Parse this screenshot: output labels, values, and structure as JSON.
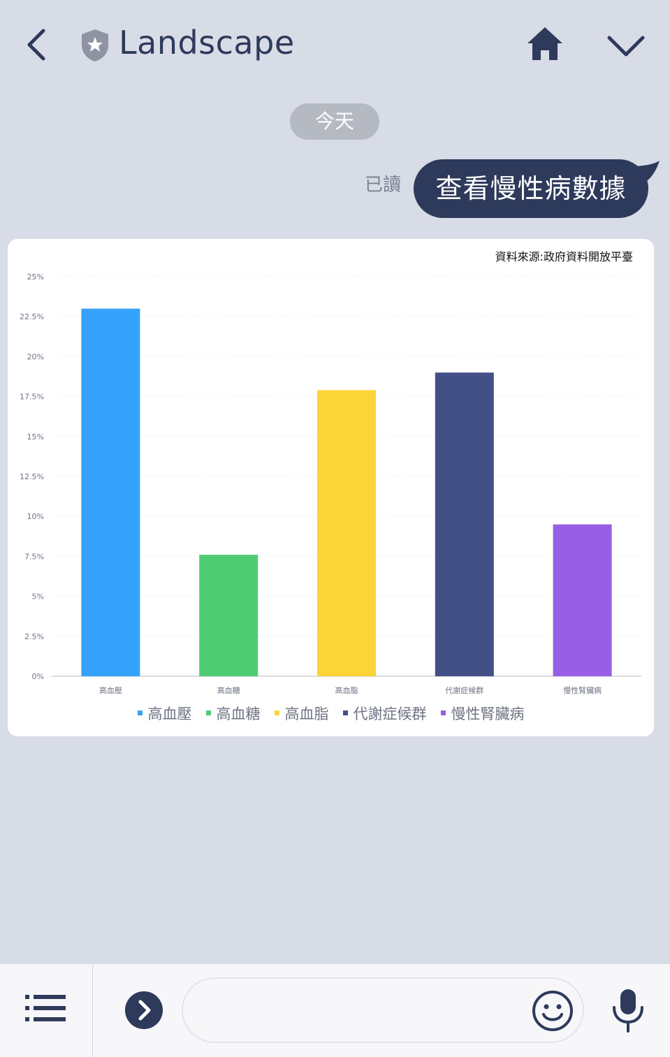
{
  "header": {
    "title": "Landscape",
    "icons": [
      "back-icon",
      "shield-star-icon",
      "home-icon",
      "chevron-down-icon"
    ]
  },
  "chat": {
    "date_label": "今天",
    "read_label": "已讀",
    "message": "查看慢性病數據"
  },
  "card": {
    "source_text": "資料來源:政府資料開放平臺"
  },
  "chart_data": {
    "type": "bar",
    "categories": [
      "高血壓",
      "高血糖",
      "高血脂",
      "代謝症候群",
      "慢性腎臟病"
    ],
    "values": [
      23,
      7.6,
      17.9,
      19,
      9.5
    ],
    "colors": [
      "#36a2fb",
      "#4fcb74",
      "#fbd437",
      "#435087",
      "#975fe5"
    ],
    "yticks": [
      "0%",
      "2.5%",
      "5%",
      "7.5%",
      "10%",
      "12.5%",
      "15%",
      "17.5%",
      "20%",
      "22.5%",
      "25%"
    ],
    "ylim": [
      0,
      25
    ],
    "grid": true,
    "legend_position": "bottom"
  },
  "colors": {
    "background": "#d8dce6",
    "navy": "#2e3a5b",
    "pill": "#b5b9c2"
  },
  "bottom_bar": {
    "icons": [
      "menu-icon",
      "expand-icon",
      "emoji-icon",
      "microphone-icon"
    ],
    "input_placeholder": ""
  }
}
